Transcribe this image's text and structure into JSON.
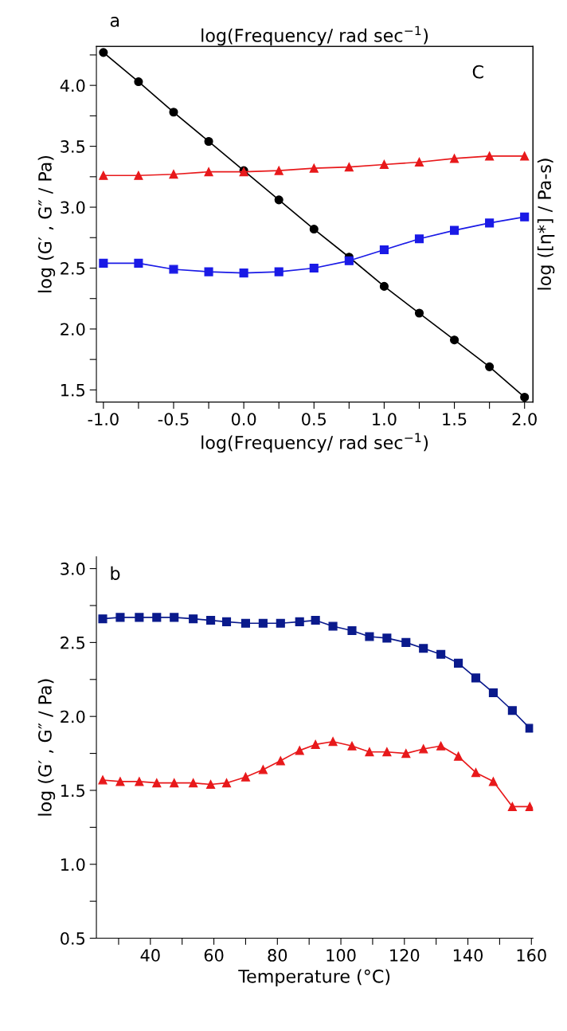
{
  "chart_data": [
    {
      "type": "line",
      "xlabel": "log(Frequency/ rad sec$^{−1}$)",
      "x2label": "log(Frequency/ rad sec$^{−1}$)",
      "ylabel": "log (G′ , G″ / Pa)",
      "y2label": "log ([η*] / Pa-s)",
      "annotations": [
        "a",
        "C"
      ],
      "x": [
        -1.0,
        -0.75,
        -0.5,
        -0.25,
        0.0,
        0.25,
        0.5,
        0.75,
        1.0,
        1.25,
        1.5,
        1.75,
        2.0
      ],
      "xlim": [
        -1.05,
        2.06
      ],
      "ylim": [
        1.4,
        4.32
      ],
      "xticks": [
        {
          "value": -1.0,
          "label": "-1.0"
        },
        -0.5,
        {
          "value": 0.0,
          "label": "0.0"
        },
        0.5,
        {
          "value": 1.0,
          "label": "1.0"
        },
        1.5,
        {
          "value": 2.0,
          "label": "2.0"
        },
        {
          "value": -0.75,
          "label": null
        },
        {
          "value": -0.25,
          "label": null
        },
        {
          "value": 0.25,
          "label": null
        },
        {
          "value": 0.75,
          "label": null
        },
        {
          "value": 1.25,
          "label": null
        },
        {
          "value": 1.75,
          "label": null
        }
      ],
      "yticks": [
        1.5,
        {
          "value": 2.0,
          "label": "2.0"
        },
        2.5,
        {
          "value": 3.0,
          "label": "3.0"
        },
        3.5,
        {
          "value": 4.0,
          "label": "4.0"
        },
        {
          "value": 1.75,
          "label": null
        },
        {
          "value": 2.25,
          "label": null
        },
        {
          "value": 2.75,
          "label": null
        },
        {
          "value": 3.25,
          "label": null
        },
        {
          "value": 3.75,
          "label": null
        },
        {
          "value": 4.25,
          "label": null
        }
      ],
      "grid": false,
      "legend": false,
      "line_style": "solid",
      "series": [
        {
          "color": "#000000",
          "marker": "circle",
          "values": [
            4.27,
            4.03,
            3.78,
            3.54,
            3.3,
            3.06,
            2.82,
            2.59,
            2.35,
            2.13,
            1.91,
            1.69,
            1.44
          ]
        },
        {
          "color": "#e8191b",
          "marker": "triangle",
          "values": [
            3.26,
            3.26,
            3.27,
            3.29,
            3.29,
            3.3,
            3.32,
            3.33,
            3.35,
            3.37,
            3.4,
            3.42,
            3.42
          ]
        },
        {
          "color": "#1a1ae6",
          "marker": "square",
          "values": [
            2.54,
            2.54,
            2.49,
            2.47,
            2.46,
            2.47,
            2.5,
            2.56,
            2.65,
            2.74,
            2.81,
            2.87,
            2.92
          ]
        }
      ]
    },
    {
      "type": "line",
      "xlabel": "Temperature (°C)",
      "ylabel": "log (G′ , G″ / Pa)",
      "annotations": [
        "b"
      ],
      "x": [
        25,
        30.5,
        36.5,
        42,
        47.5,
        53.5,
        59,
        64,
        70,
        75.5,
        81,
        87,
        92,
        97.5,
        103.5,
        109,
        114.5,
        120.5,
        126,
        131.5,
        137,
        142.5,
        148,
        154,
        159.5
      ],
      "xlim": [
        23,
        160.5
      ],
      "ylim": [
        0.5,
        3.08
      ],
      "xticks": [
        40,
        60,
        80,
        100,
        120,
        140,
        160,
        {
          "value": 30,
          "label": null
        },
        {
          "value": 50,
          "label": null
        },
        {
          "value": 70,
          "label": null
        },
        {
          "value": 90,
          "label": null
        },
        {
          "value": 110,
          "label": null
        },
        {
          "value": 130,
          "label": null
        },
        {
          "value": 150,
          "label": null
        }
      ],
      "yticks": [
        0.5,
        {
          "value": 1.0,
          "label": "1.0"
        },
        1.5,
        {
          "value": 2.0,
          "label": "2.0"
        },
        2.5,
        {
          "value": 3.0,
          "label": "3.0"
        },
        {
          "value": 0.75,
          "label": null
        },
        {
          "value": 1.25,
          "label": null
        },
        {
          "value": 1.75,
          "label": null
        },
        {
          "value": 2.25,
          "label": null
        },
        {
          "value": 2.75,
          "label": null
        }
      ],
      "grid": false,
      "legend": false,
      "line_style": "solid",
      "series": [
        {
          "color": "#0a1a8c",
          "marker": "square",
          "values": [
            2.66,
            2.67,
            2.67,
            2.67,
            2.67,
            2.66,
            2.65,
            2.64,
            2.63,
            2.63,
            2.63,
            2.64,
            2.65,
            2.61,
            2.58,
            2.54,
            2.53,
            2.5,
            2.46,
            2.42,
            2.36,
            2.26,
            2.16,
            2.04,
            1.92
          ]
        },
        {
          "color": "#e8191b",
          "marker": "triangle",
          "values": [
            1.57,
            1.56,
            1.56,
            1.55,
            1.55,
            1.55,
            1.54,
            1.55,
            1.59,
            1.64,
            1.7,
            1.77,
            1.81,
            1.83,
            1.8,
            1.76,
            1.76,
            1.75,
            1.78,
            1.8,
            1.73,
            1.62,
            1.56,
            1.39,
            1.39
          ]
        }
      ]
    }
  ]
}
